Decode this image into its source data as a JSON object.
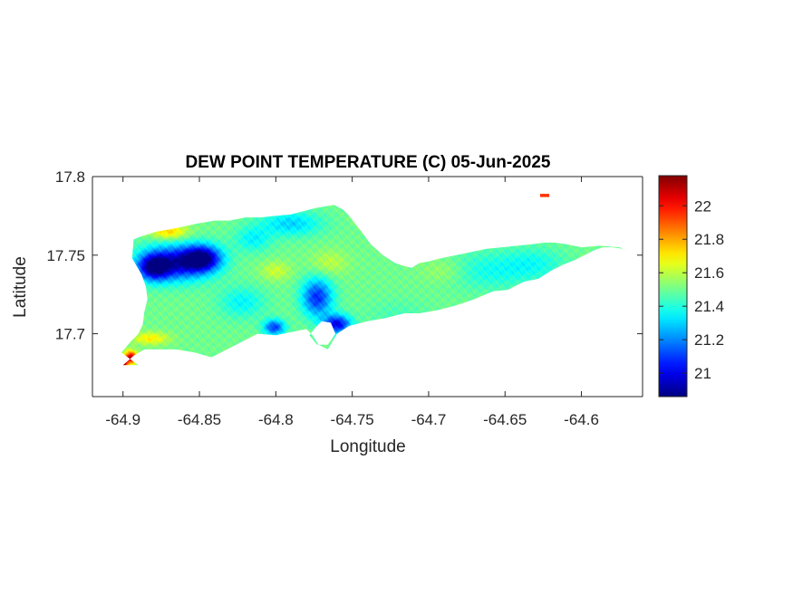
{
  "chart_data": {
    "type": "heatmap",
    "title": "DEW POINT TEMPERATURE (C) 05-Jun-2025",
    "xlabel": "Longitude",
    "ylabel": "Latitude",
    "xlim": [
      -64.92,
      -64.56
    ],
    "ylim": [
      17.66,
      17.8
    ],
    "x_ticks": [
      -64.9,
      -64.85,
      -64.8,
      -64.75,
      -64.7,
      -64.65,
      -64.6
    ],
    "x_tick_labels": [
      "-64.9",
      "-64.85",
      "-64.8",
      "-64.75",
      "-64.7",
      "-64.65",
      "-64.6"
    ],
    "y_ticks": [
      17.7,
      17.75,
      17.8
    ],
    "y_tick_labels": [
      "17.7",
      "17.75",
      "17.8"
    ],
    "grid": false,
    "colormap": "jet",
    "colorbar": {
      "position": "right",
      "range": [
        20.86,
        22.18
      ],
      "ticks": [
        21,
        21.2,
        21.4,
        21.6,
        21.8,
        22
      ],
      "tick_labels": [
        "21",
        "21.2",
        "21.4",
        "21.6",
        "21.8",
        "22"
      ]
    },
    "field": {
      "base_value": 21.5,
      "anomalies": [
        {
          "lon": -64.866,
          "lat": 17.745,
          "value": 20.98,
          "radius_lon": 0.022,
          "radius_lat": 0.011
        },
        {
          "lon": -64.848,
          "lat": 17.748,
          "value": 20.95,
          "radius_lon": 0.012,
          "radius_lat": 0.008
        },
        {
          "lon": -64.88,
          "lat": 17.742,
          "value": 21.05,
          "radius_lon": 0.01,
          "radius_lat": 0.008
        },
        {
          "lon": -64.773,
          "lat": 17.723,
          "value": 21.08,
          "radius_lon": 0.01,
          "radius_lat": 0.012
        },
        {
          "lon": -64.76,
          "lat": 17.706,
          "value": 21.0,
          "radius_lon": 0.009,
          "radius_lat": 0.006
        },
        {
          "lon": -64.801,
          "lat": 17.704,
          "value": 21.1,
          "radius_lon": 0.007,
          "radius_lat": 0.005
        },
        {
          "lon": -64.822,
          "lat": 17.72,
          "value": 21.35,
          "radius_lon": 0.015,
          "radius_lat": 0.01
        },
        {
          "lon": -64.79,
          "lat": 17.77,
          "value": 21.3,
          "radius_lon": 0.02,
          "radius_lat": 0.008
        },
        {
          "lon": -64.815,
          "lat": 17.76,
          "value": 21.35,
          "radius_lon": 0.012,
          "radius_lat": 0.008
        },
        {
          "lon": -64.66,
          "lat": 17.74,
          "value": 21.38,
          "radius_lon": 0.03,
          "radius_lat": 0.012
        },
        {
          "lon": -64.63,
          "lat": 17.745,
          "value": 21.4,
          "radius_lon": 0.02,
          "radius_lat": 0.01
        },
        {
          "lon": -64.72,
          "lat": 17.712,
          "value": 21.45,
          "radius_lon": 0.02,
          "radius_lat": 0.01
        },
        {
          "lon": -64.8,
          "lat": 17.74,
          "value": 21.62,
          "radius_lon": 0.01,
          "radius_lat": 0.006
        },
        {
          "lon": -64.765,
          "lat": 17.745,
          "value": 21.6,
          "radius_lon": 0.012,
          "radius_lat": 0.008
        },
        {
          "lon": -64.69,
          "lat": 17.74,
          "value": 21.58,
          "radius_lon": 0.015,
          "radius_lat": 0.008
        },
        {
          "lon": -64.882,
          "lat": 17.697,
          "value": 21.7,
          "radius_lon": 0.012,
          "radius_lat": 0.004
        },
        {
          "lon": -64.87,
          "lat": 17.765,
          "value": 21.75,
          "radius_lon": 0.012,
          "radius_lat": 0.005
        },
        {
          "lon": -64.745,
          "lat": 17.777,
          "value": 21.7,
          "radius_lon": 0.005,
          "radius_lat": 0.004
        },
        {
          "lon": -64.895,
          "lat": 17.685,
          "value": 22.1,
          "radius_lon": 0.004,
          "radius_lat": 0.004
        },
        {
          "lon": -64.9,
          "lat": 17.681,
          "value": 22.18,
          "radius_lon": 0.003,
          "radius_lat": 0.003
        }
      ],
      "islet": {
        "lon": [
          -64.627,
          -64.621
        ],
        "lat": [
          17.789,
          17.787
        ],
        "value": 21.95
      }
    },
    "land_outline": {
      "lon": [
        -64.9,
        -64.893,
        -64.886,
        -64.876,
        -64.865,
        -64.853,
        -64.842,
        -64.832,
        -64.822,
        -64.812,
        -64.8,
        -64.79,
        -64.78,
        -64.776,
        -64.772,
        -64.766,
        -64.76,
        -64.752,
        -64.74,
        -64.728,
        -64.716,
        -64.706,
        -64.694,
        -64.682,
        -64.67,
        -64.658,
        -64.648,
        -64.638,
        -64.628,
        -64.62,
        -64.612,
        -64.604,
        -64.598,
        -64.592,
        -64.586,
        -64.58,
        -64.573,
        -64.568,
        -64.575,
        -64.588,
        -64.6,
        -64.61,
        -64.618,
        -64.624,
        -64.632,
        -64.642,
        -64.652,
        -64.662,
        -64.672,
        -64.682,
        -64.692,
        -64.7,
        -64.706,
        -64.711,
        -64.716,
        -64.722,
        -64.73,
        -64.738,
        -64.744,
        -64.748,
        -64.752,
        -64.756,
        -64.762,
        -64.768,
        -64.774,
        -64.782,
        -64.79,
        -64.8,
        -64.81,
        -64.82,
        -64.83,
        -64.84,
        -64.852,
        -64.866,
        -64.878,
        -64.888,
        -64.893,
        -64.894,
        -64.888,
        -64.885,
        -64.884,
        -64.886,
        -64.887,
        -64.89,
        -64.895,
        -64.901,
        -64.894,
        -64.89
      ],
      "lat": [
        17.68,
        17.686,
        17.69,
        17.69,
        17.69,
        17.688,
        17.685,
        17.69,
        17.695,
        17.7,
        17.699,
        17.701,
        17.703,
        17.699,
        17.693,
        17.69,
        17.7,
        17.705,
        17.708,
        17.71,
        17.713,
        17.713,
        17.715,
        17.718,
        17.722,
        17.727,
        17.728,
        17.733,
        17.735,
        17.74,
        17.744,
        17.747,
        17.75,
        17.753,
        17.755,
        17.755,
        17.754,
        17.752,
        17.755,
        17.756,
        17.755,
        17.757,
        17.758,
        17.758,
        17.757,
        17.756,
        17.755,
        17.754,
        17.752,
        17.75,
        17.748,
        17.746,
        17.745,
        17.742,
        17.743,
        17.745,
        17.75,
        17.757,
        17.765,
        17.77,
        17.775,
        17.779,
        17.782,
        17.781,
        17.78,
        17.778,
        17.776,
        17.775,
        17.774,
        17.774,
        17.772,
        17.772,
        17.77,
        17.767,
        17.765,
        17.762,
        17.76,
        17.748,
        17.738,
        17.73,
        17.722,
        17.714,
        17.706,
        17.7,
        17.695,
        17.688,
        17.683,
        17.68
      ]
    },
    "bay_cutout": {
      "lon": [
        -64.778,
        -64.774,
        -64.77,
        -64.764,
        -64.761,
        -64.766,
        -64.773
      ],
      "lat": [
        17.699,
        17.704,
        17.708,
        17.707,
        17.7,
        17.693,
        17.693
      ]
    }
  }
}
